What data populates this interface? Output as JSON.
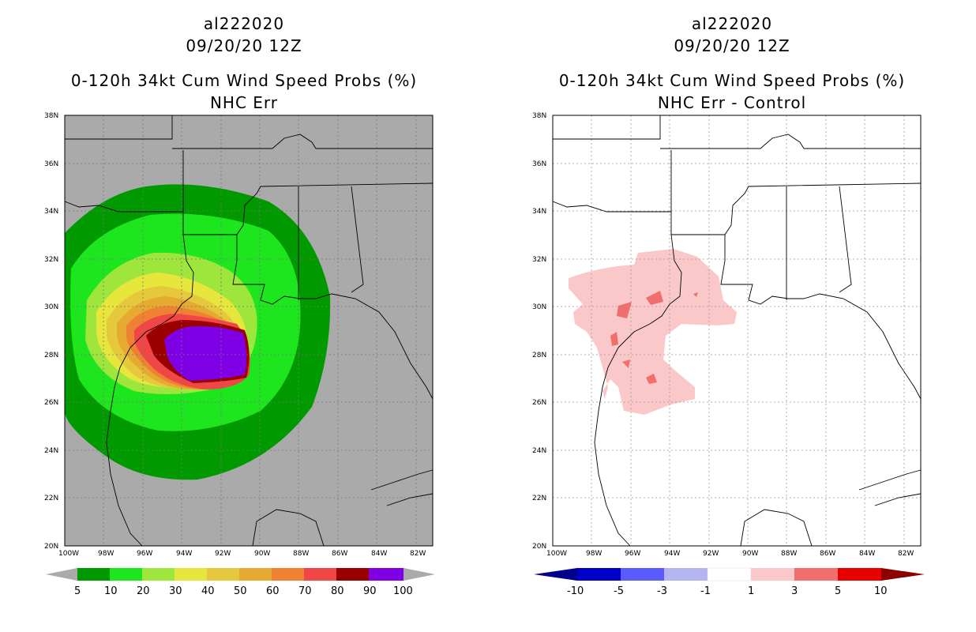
{
  "left": {
    "storm": "al222020",
    "date": "09/20/20 12Z",
    "product": "0-120h 34kt Cum Wind Speed Probs (%)",
    "variant": "NHC Err",
    "lat_labels": [
      "38N",
      "36N",
      "34N",
      "32N",
      "30N",
      "28N",
      "26N",
      "24N",
      "22N",
      "20N"
    ],
    "lon_labels": [
      "100W",
      "98W",
      "96W",
      "94W",
      "92W",
      "90W",
      "88W",
      "86W",
      "84W",
      "82W"
    ],
    "colorbar_labels": [
      "5",
      "10",
      "20",
      "30",
      "40",
      "50",
      "60",
      "70",
      "80",
      "90",
      "100"
    ],
    "colorbar_colors": [
      "#009a00",
      "#1ee61e",
      "#9ee63c",
      "#e6e63c",
      "#e6c83c",
      "#e6aa32",
      "#ef8232",
      "#f04646",
      "#9a0000",
      "#8000e6"
    ]
  },
  "right": {
    "storm": "al222020",
    "date": "09/20/20 12Z",
    "product": "0-120h 34kt Cum Wind Speed Probs (%)",
    "variant": "NHC Err - Control",
    "lat_labels": [
      "38N",
      "36N",
      "34N",
      "32N",
      "30N",
      "28N",
      "26N",
      "24N",
      "22N",
      "20N"
    ],
    "lon_labels": [
      "100W",
      "98W",
      "96W",
      "94W",
      "92W",
      "90W",
      "88W",
      "86W",
      "84W",
      "82W"
    ],
    "colorbar_labels": [
      "-10",
      "-5",
      "-3",
      "-1",
      "1",
      "3",
      "5",
      "10"
    ],
    "colorbar_colors": [
      "#0000c8",
      "#5a5aff",
      "#b4b4f0",
      "#ffffff",
      "#fac8c8",
      "#f06e6e",
      "#e60000"
    ]
  },
  "colors": {
    "land_bg_left": "#aaaaaa",
    "triangle_grey": "#aaaaaa",
    "arrow_dark_blue": "#00008c",
    "arrow_dark_red": "#8c0000"
  }
}
